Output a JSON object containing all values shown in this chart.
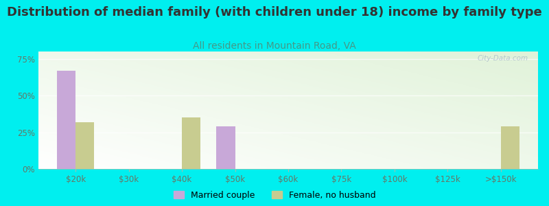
{
  "title": "Distribution of median family (with children under 18) income by family type",
  "subtitle": "All residents in Mountain Road, VA",
  "categories": [
    "$20k",
    "$30k",
    "$40k",
    "$50k",
    "$60k",
    "$75k",
    "$100k",
    "$125k",
    ">$150k"
  ],
  "married_couple": [
    67,
    0,
    0,
    29,
    0,
    0,
    0,
    0,
    0
  ],
  "female_no_husband": [
    32,
    0,
    35,
    0,
    0,
    0,
    0,
    0,
    29
  ],
  "married_color": "#c8a8d8",
  "female_color": "#c8cc90",
  "background_color": "#00efef",
  "ylim": [
    0,
    80
  ],
  "yticks": [
    0,
    25,
    50,
    75
  ],
  "ytick_labels": [
    "0%",
    "25%",
    "50%",
    "75%"
  ],
  "bar_width": 0.35,
  "title_fontsize": 13,
  "subtitle_fontsize": 10,
  "subtitle_color": "#449988",
  "tick_color": "#667766",
  "watermark": "City-Data.com"
}
